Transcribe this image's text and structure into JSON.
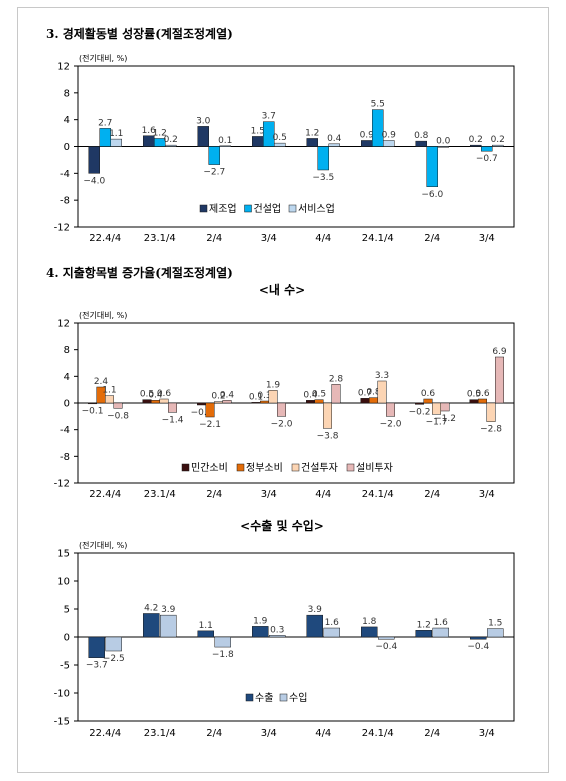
{
  "heading1": "3. 경제활동별 성장률(계절조정계열)",
  "heading2": "4. 지출항목별 증가율(계절조정계열)",
  "subtitle_domestic": "<내  수>",
  "subtitle_trade": "<수출 및 수입>",
  "chart_data": [
    {
      "type": "bar",
      "title": "",
      "ylabel": "(전기대비, %)",
      "ylim": [
        -12,
        12
      ],
      "yticks": [
        12,
        8,
        4,
        0,
        -4,
        -8,
        -12
      ],
      "categories": [
        "22.4/4",
        "23.1/4",
        "2/4",
        "3/4",
        "4/4",
        "24.1/4",
        "2/4",
        "3/4"
      ],
      "legend_position": "bottom-center",
      "series": [
        {
          "name": "제조업",
          "color": "#1f3864",
          "values": [
            -4.0,
            1.6,
            3.0,
            1.5,
            1.2,
            0.9,
            0.8,
            0.2
          ]
        },
        {
          "name": "건설업",
          "color": "#00b0f0",
          "values": [
            2.7,
            1.2,
            -2.7,
            3.7,
            -3.5,
            5.5,
            -6.0,
            -0.7
          ]
        },
        {
          "name": "서비스업",
          "color": "#bdd7ee",
          "values": [
            1.1,
            0.2,
            0.1,
            0.5,
            0.4,
            0.9,
            0.0,
            0.2
          ]
        }
      ]
    },
    {
      "type": "bar",
      "title": "",
      "ylabel": "(전기대비, %)",
      "ylim": [
        -12,
        12
      ],
      "yticks": [
        12,
        8,
        4,
        0,
        -4,
        -8,
        -12
      ],
      "categories": [
        "22.4/4",
        "23.1/4",
        "2/4",
        "3/4",
        "4/4",
        "24.1/4",
        "2/4",
        "3/4"
      ],
      "legend_position": "bottom-center",
      "series": [
        {
          "name": "민간소비",
          "color": "#3a0f0f",
          "values": [
            -0.1,
            0.5,
            -0.3,
            0.1,
            0.4,
            0.7,
            -0.2,
            0.5
          ]
        },
        {
          "name": "정부소비",
          "color": "#e36c09",
          "values": [
            2.4,
            0.4,
            -2.1,
            0.3,
            0.5,
            0.8,
            0.6,
            0.6
          ]
        },
        {
          "name": "건설투자",
          "color": "#fcd5b4",
          "values": [
            1.1,
            0.6,
            0.2,
            1.9,
            -3.8,
            3.3,
            -1.7,
            -2.8
          ]
        },
        {
          "name": "설비투자",
          "color": "#e6b8b7",
          "values": [
            -0.8,
            -1.4,
            0.4,
            -2.0,
            2.8,
            -2.0,
            -1.2,
            6.9
          ]
        }
      ]
    },
    {
      "type": "bar",
      "title": "",
      "ylabel": "(전기대비, %)",
      "ylim": [
        -15,
        15
      ],
      "yticks": [
        15,
        10,
        5,
        0,
        -5,
        -10,
        -15
      ],
      "categories": [
        "22.4/4",
        "23.1/4",
        "2/4",
        "3/4",
        "4/4",
        "24.1/4",
        "2/4",
        "3/4"
      ],
      "legend_position": "bottom-center",
      "series": [
        {
          "name": "수출",
          "color": "#1f497d",
          "values": [
            -3.7,
            4.2,
            1.1,
            1.9,
            3.9,
            1.8,
            1.2,
            -0.4
          ]
        },
        {
          "name": "수입",
          "color": "#b8cce4",
          "values": [
            -2.5,
            3.9,
            -1.8,
            0.3,
            1.6,
            -0.4,
            1.6,
            1.5
          ]
        }
      ]
    }
  ]
}
